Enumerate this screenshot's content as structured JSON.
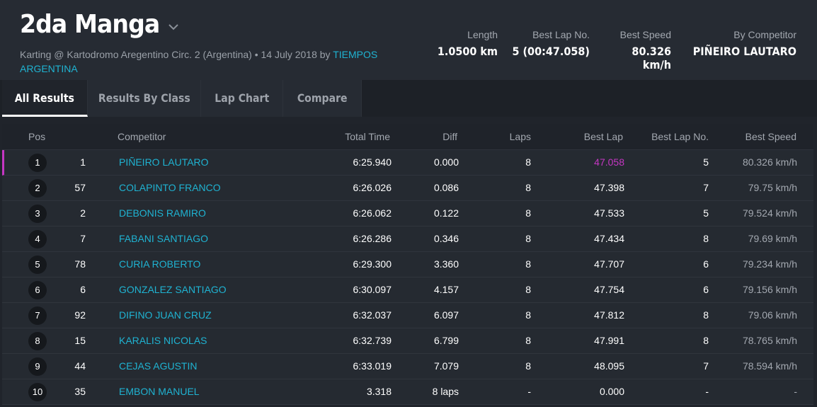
{
  "header": {
    "title": "2da Manga",
    "subtitle_text": "Karting @ Kartodromo Aregentino Circ. 2 (Argentina) • 14 July 2018 by ",
    "subtitle_link": "TIEMPOS ARGENTINA",
    "stats": [
      {
        "label": "Length",
        "value": "1.0500 km"
      },
      {
        "label": "Best Lap No.",
        "value": "5 (00:47.058)"
      },
      {
        "label": "Best Speed",
        "value": "80.326 km/h"
      },
      {
        "label": "By Competitor",
        "value": "PIÑEIRO LAUTARO"
      }
    ]
  },
  "tabs": [
    {
      "label": "All Results",
      "active": true
    },
    {
      "label": "Results By Class"
    },
    {
      "label": "Lap Chart"
    },
    {
      "label": "Compare"
    }
  ],
  "columns": [
    "Pos",
    "Competitor",
    "Total Time",
    "Diff",
    "Laps",
    "Best Lap",
    "Best Lap No.",
    "Best Speed"
  ],
  "rows": [
    {
      "pos": "1",
      "no": "1",
      "name": "PIÑEIRO LAUTARO",
      "total": "6:25.940",
      "diff": "0.000",
      "laps": "8",
      "best": "47.058",
      "best_no": "5",
      "speed": "80.326 km/h"
    },
    {
      "pos": "2",
      "no": "57",
      "name": "COLAPINTO FRANCO",
      "total": "6:26.026",
      "diff": "0.086",
      "laps": "8",
      "best": "47.398",
      "best_no": "7",
      "speed": "79.75 km/h"
    },
    {
      "pos": "3",
      "no": "2",
      "name": "DEBONIS RAMIRO",
      "total": "6:26.062",
      "diff": "0.122",
      "laps": "8",
      "best": "47.533",
      "best_no": "5",
      "speed": "79.524 km/h"
    },
    {
      "pos": "4",
      "no": "7",
      "name": "FABANI SANTIAGO",
      "total": "6:26.286",
      "diff": "0.346",
      "laps": "8",
      "best": "47.434",
      "best_no": "8",
      "speed": "79.69 km/h"
    },
    {
      "pos": "5",
      "no": "78",
      "name": "CURIA ROBERTO",
      "total": "6:29.300",
      "diff": "3.360",
      "laps": "8",
      "best": "47.707",
      "best_no": "6",
      "speed": "79.234 km/h"
    },
    {
      "pos": "6",
      "no": "6",
      "name": "GONZALEZ SANTIAGO",
      "total": "6:30.097",
      "diff": "4.157",
      "laps": "8",
      "best": "47.754",
      "best_no": "6",
      "speed": "79.156 km/h"
    },
    {
      "pos": "7",
      "no": "92",
      "name": "DIFINO JUAN CRUZ",
      "total": "6:32.037",
      "diff": "6.097",
      "laps": "8",
      "best": "47.812",
      "best_no": "8",
      "speed": "79.06 km/h"
    },
    {
      "pos": "8",
      "no": "15",
      "name": "KARALIS NICOLAS",
      "total": "6:32.739",
      "diff": "6.799",
      "laps": "8",
      "best": "47.991",
      "best_no": "8",
      "speed": "78.765 km/h"
    },
    {
      "pos": "9",
      "no": "44",
      "name": "CEJAS AGUSTIN",
      "total": "6:33.019",
      "diff": "7.079",
      "laps": "8",
      "best": "48.095",
      "best_no": "7",
      "speed": "78.594 km/h"
    },
    {
      "pos": "10",
      "no": "35",
      "name": "EMBON MANUEL",
      "total": "3.318",
      "diff": "8 laps",
      "laps": "-",
      "best": "0.000",
      "best_no": "-",
      "speed": "-"
    }
  ],
  "colors": {
    "accent": "#1fb3d2",
    "fastest": "#c536c3",
    "background": "#20242b"
  },
  "icons": {
    "title_dropdown": "chevron-down-icon"
  }
}
